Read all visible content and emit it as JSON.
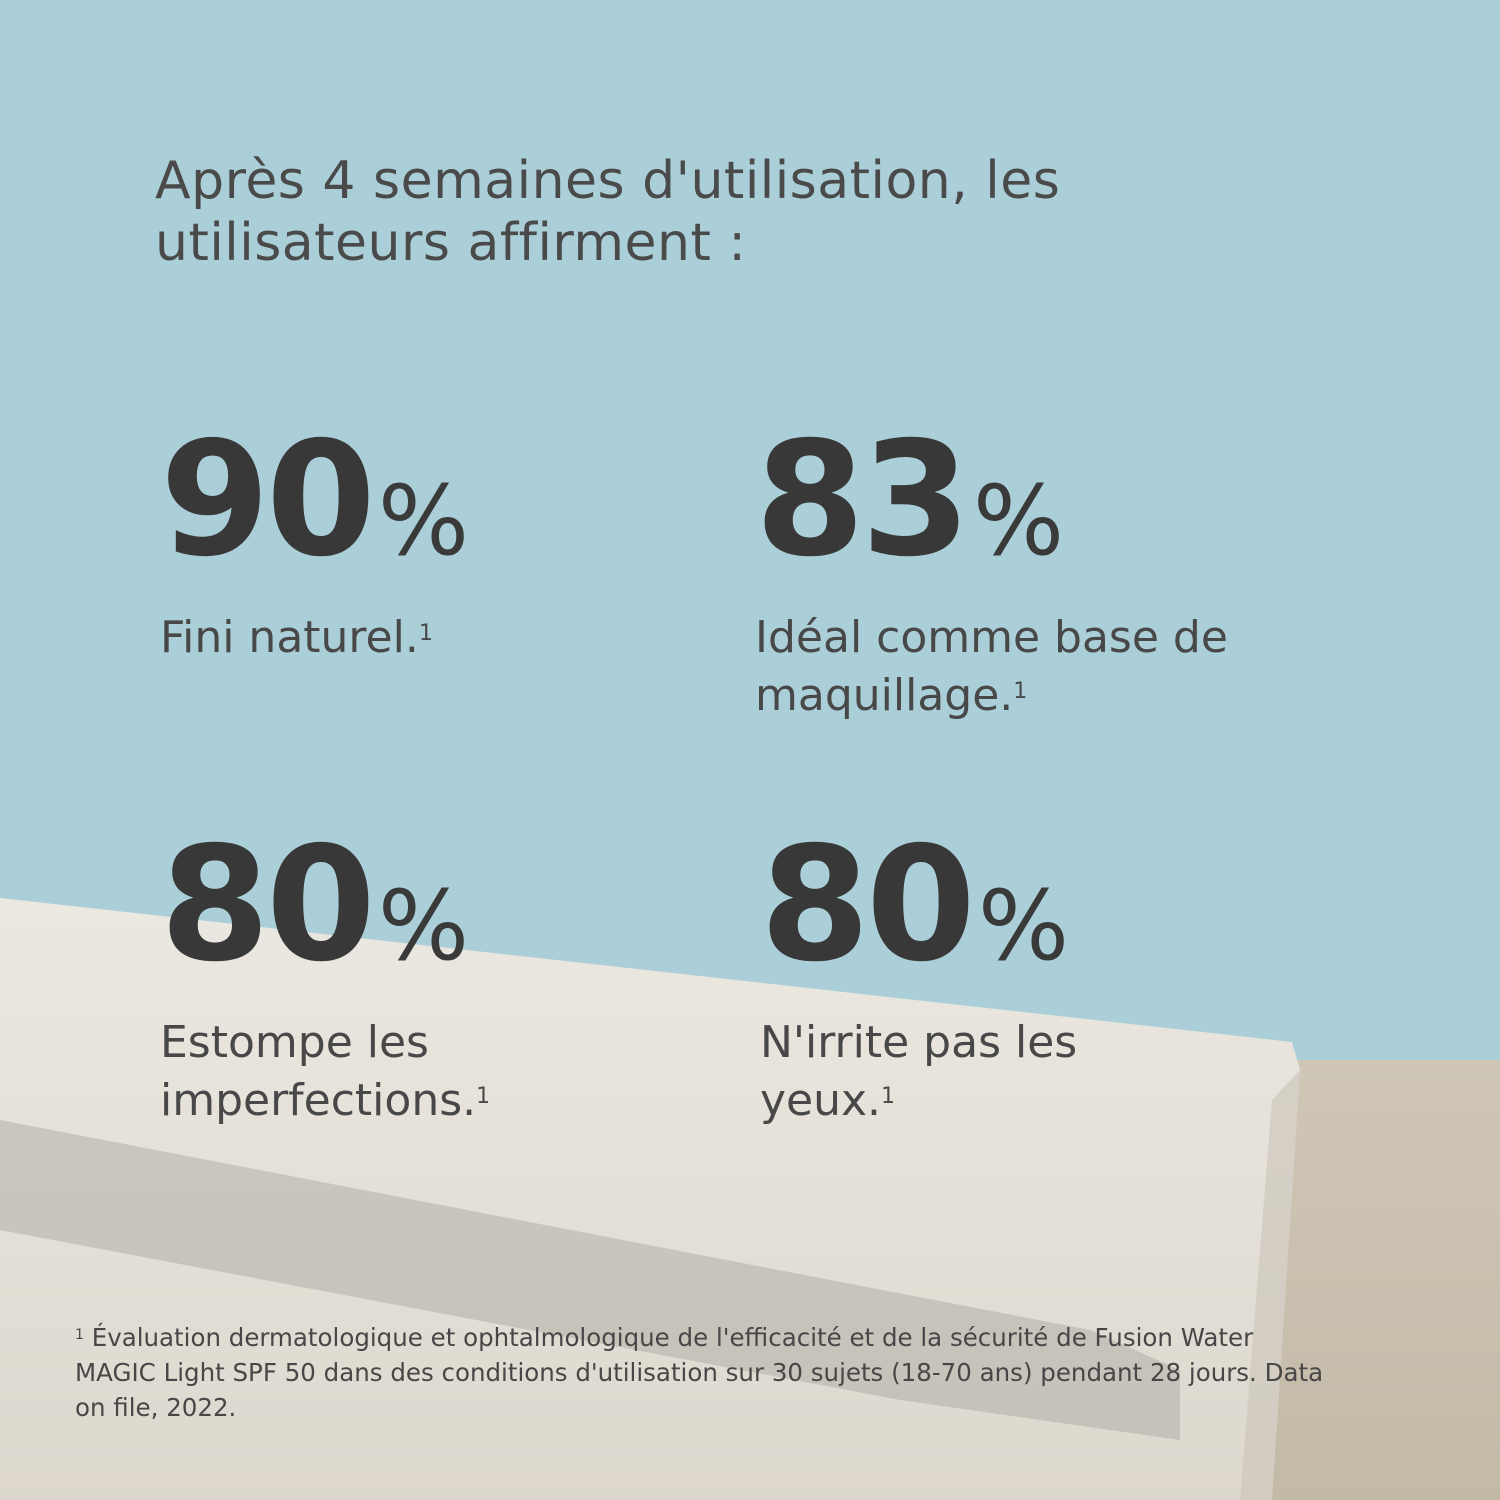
{
  "headline": "Après 4 semaines d'utilisation, les utilisateurs affirment :",
  "stats": [
    {
      "value": "90",
      "unit": "%",
      "text": "Fini naturel.",
      "note": "1"
    },
    {
      "value": "83",
      "unit": "%",
      "text": "Idéal comme base de maquillage.",
      "note": "1"
    },
    {
      "value": "80",
      "unit": "%",
      "text": "Estompe les imperfections.",
      "note": "1"
    },
    {
      "value": "80",
      "unit": "%",
      "text": "N'irrite pas les yeux.",
      "note": "1"
    }
  ],
  "footnote": {
    "marker": "1",
    "text": "Évaluation dermatologique et ophtalmologique de l'efficacité et de la sécurité de Fusion Water MAGIC Light SPF 50 dans des conditions d'utilisation sur 30 sujets (18-70 ans) pendant 28 jours. Data on file, 2022."
  },
  "colors": {
    "sky": "#abcfd8",
    "stone": "#e6e3db",
    "sand": "#cbc2b2",
    "text": "#3d3d3d"
  }
}
